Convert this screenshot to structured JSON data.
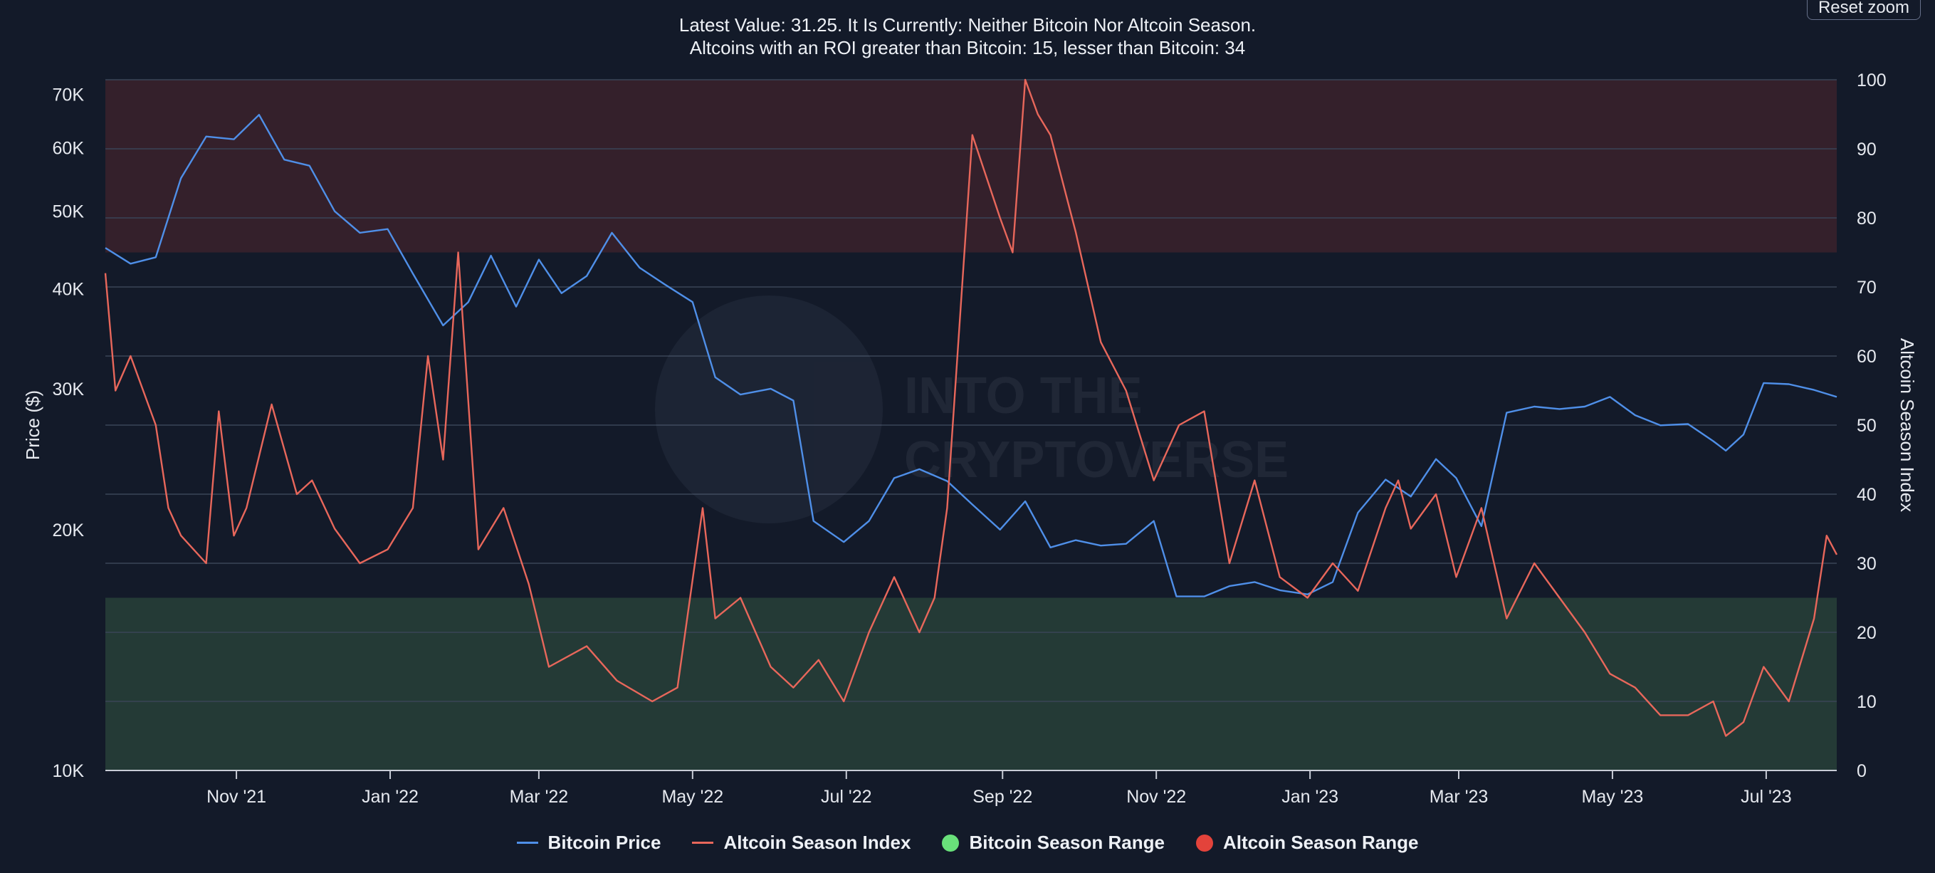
{
  "header": {
    "subtitle_line1": "Latest Value: 31.25. It Is Currently: Neither Bitcoin Nor Altcoin Season.",
    "subtitle_line2": "Altcoins with an ROI greater than Bitcoin: 15, lesser than Bitcoin: 34",
    "reset_zoom_label": "Reset zoom"
  },
  "colors": {
    "background": "#131a29",
    "bitcoin_price": "#4f8fe8",
    "altcoin_index": "#e8675b",
    "bitcoin_season_range": "#69e07a",
    "altcoin_season_range": "#e3433b",
    "bitcoin_band_fill": "#243a36",
    "altcoin_band_fill": "#34202b"
  },
  "legend": [
    {
      "label": "Bitcoin Price",
      "symbol": "line",
      "color": "#4f8fe8"
    },
    {
      "label": "Altcoin Season Index",
      "symbol": "line",
      "color": "#e8675b"
    },
    {
      "label": "Bitcoin Season Range",
      "symbol": "dot",
      "color": "#69e07a"
    },
    {
      "label": "Altcoin Season Range",
      "symbol": "dot",
      "color": "#e3433b"
    }
  ],
  "watermark": {
    "line1": "INTO THE",
    "line2": "CRYPTOVERSE"
  },
  "chart_data": {
    "type": "line",
    "title": "",
    "subtitle": "Latest Value: 31.25. It Is Currently: Neither Bitcoin Nor Altcoin Season. Altcoins with an ROI greater than Bitcoin: 15, lesser than Bitcoin: 34",
    "x_range": [
      "2021-09-10",
      "2023-07-29"
    ],
    "x_tick_labels": [
      {
        "date": "2021-11-01",
        "label": "Nov '21"
      },
      {
        "date": "2022-01-01",
        "label": "Jan '22"
      },
      {
        "date": "2022-03-01",
        "label": "Mar '22"
      },
      {
        "date": "2022-05-01",
        "label": "May '22"
      },
      {
        "date": "2022-07-01",
        "label": "Jul '22"
      },
      {
        "date": "2022-09-01",
        "label": "Sep '22"
      },
      {
        "date": "2022-11-01",
        "label": "Nov '22"
      },
      {
        "date": "2023-01-01",
        "label": "Jan '23"
      },
      {
        "date": "2023-03-01",
        "label": "Mar '23"
      },
      {
        "date": "2023-05-01",
        "label": "May '23"
      },
      {
        "date": "2023-07-01",
        "label": "Jul '23"
      }
    ],
    "y_left": {
      "label": "Price ($)",
      "scale": "log",
      "range": [
        10000,
        73000
      ],
      "ticks": [
        10000,
        20000,
        30000,
        40000,
        50000,
        60000,
        70000
      ],
      "tick_labels": [
        "10K",
        "20K",
        "30K",
        "40K",
        "50K",
        "60K",
        "70K"
      ]
    },
    "y_right": {
      "label": "Altcoin Season Index",
      "scale": "linear",
      "range": [
        0,
        100
      ],
      "ticks": [
        0,
        10,
        20,
        30,
        40,
        50,
        60,
        70,
        80,
        90,
        100
      ]
    },
    "bands": [
      {
        "name": "Bitcoin Season Range",
        "axis": "right",
        "from": 0,
        "to": 25
      },
      {
        "name": "Altcoin Season Range",
        "axis": "right",
        "from": 75,
        "to": 100
      }
    ],
    "grid": true,
    "legend_position": "bottom",
    "series": [
      {
        "name": "Bitcoin Price",
        "axis": "left",
        "x": [
          "2021-09-10",
          "2021-09-20",
          "2021-09-30",
          "2021-10-10",
          "2021-10-20",
          "2021-10-31",
          "2021-11-10",
          "2021-11-20",
          "2021-11-30",
          "2021-12-10",
          "2021-12-20",
          "2021-12-31",
          "2022-01-10",
          "2022-01-22",
          "2022-02-01",
          "2022-02-10",
          "2022-02-20",
          "2022-03-01",
          "2022-03-10",
          "2022-03-20",
          "2022-03-30",
          "2022-04-10",
          "2022-04-20",
          "2022-05-01",
          "2022-05-10",
          "2022-05-20",
          "2022-06-01",
          "2022-06-10",
          "2022-06-18",
          "2022-06-30",
          "2022-07-10",
          "2022-07-20",
          "2022-07-30",
          "2022-08-10",
          "2022-08-20",
          "2022-08-31",
          "2022-09-10",
          "2022-09-20",
          "2022-09-30",
          "2022-10-10",
          "2022-10-20",
          "2022-10-31",
          "2022-11-09",
          "2022-11-20",
          "2022-11-30",
          "2022-12-10",
          "2022-12-20",
          "2022-12-31",
          "2023-01-10",
          "2023-01-20",
          "2023-01-31",
          "2023-02-10",
          "2023-02-20",
          "2023-02-28",
          "2023-03-10",
          "2023-03-20",
          "2023-03-31",
          "2023-04-10",
          "2023-04-20",
          "2023-04-30",
          "2023-05-10",
          "2023-05-20",
          "2023-05-31",
          "2023-06-10",
          "2023-06-15",
          "2023-06-22",
          "2023-06-30",
          "2023-07-10",
          "2023-07-20",
          "2023-07-29"
        ],
        "y": [
          45000,
          43000,
          43800,
          55000,
          62000,
          61500,
          66000,
          58000,
          57000,
          50000,
          47000,
          47500,
          41800,
          36000,
          38500,
          44000,
          38000,
          43500,
          39500,
          41500,
          47000,
          42500,
          40500,
          38500,
          31000,
          29500,
          30000,
          29000,
          20500,
          19300,
          20500,
          23200,
          23800,
          23000,
          21500,
          20000,
          21700,
          19000,
          19400,
          19100,
          19200,
          20500,
          16500,
          16500,
          17000,
          17200,
          16800,
          16600,
          17200,
          21000,
          23100,
          22000,
          24500,
          23200,
          20200,
          28000,
          28500,
          28300,
          28500,
          29300,
          27800,
          27000,
          27100,
          25800,
          25100,
          26300,
          30500,
          30400,
          29900,
          29300
        ]
      },
      {
        "name": "Altcoin Season Index",
        "axis": "right",
        "x": [
          "2021-09-10",
          "2021-09-14",
          "2021-09-20",
          "2021-09-30",
          "2021-10-05",
          "2021-10-10",
          "2021-10-20",
          "2021-10-25",
          "2021-10-31",
          "2021-11-05",
          "2021-11-15",
          "2021-11-25",
          "2021-12-01",
          "2021-12-10",
          "2021-12-20",
          "2021-12-31",
          "2022-01-10",
          "2022-01-16",
          "2022-01-22",
          "2022-01-28",
          "2022-02-05",
          "2022-02-15",
          "2022-02-25",
          "2022-03-05",
          "2022-03-20",
          "2022-04-01",
          "2022-04-15",
          "2022-04-25",
          "2022-05-05",
          "2022-05-10",
          "2022-05-20",
          "2022-06-01",
          "2022-06-10",
          "2022-06-20",
          "2022-06-30",
          "2022-07-10",
          "2022-07-20",
          "2022-07-30",
          "2022-08-05",
          "2022-08-10",
          "2022-08-20",
          "2022-08-31",
          "2022-09-05",
          "2022-09-10",
          "2022-09-15",
          "2022-09-20",
          "2022-09-30",
          "2022-10-05",
          "2022-10-10",
          "2022-10-20",
          "2022-10-31",
          "2022-11-10",
          "2022-11-20",
          "2022-11-30",
          "2022-12-10",
          "2022-12-20",
          "2022-12-31",
          "2023-01-10",
          "2023-01-20",
          "2023-01-31",
          "2023-02-05",
          "2023-02-10",
          "2023-02-20",
          "2023-02-28",
          "2023-03-10",
          "2023-03-20",
          "2023-03-31",
          "2023-04-10",
          "2023-04-20",
          "2023-04-30",
          "2023-05-10",
          "2023-05-20",
          "2023-05-31",
          "2023-06-10",
          "2023-06-15",
          "2023-06-22",
          "2023-06-30",
          "2023-07-10",
          "2023-07-20",
          "2023-07-25",
          "2023-07-29"
        ],
        "y": [
          72,
          55,
          60,
          50,
          38,
          34,
          30,
          52,
          34,
          38,
          53,
          40,
          42,
          35,
          30,
          32,
          38,
          60,
          45,
          75,
          32,
          38,
          27,
          15,
          18,
          13,
          10,
          12,
          38,
          22,
          25,
          15,
          12,
          16,
          10,
          20,
          28,
          20,
          25,
          38,
          92,
          80,
          75,
          100,
          95,
          92,
          78,
          70,
          62,
          55,
          42,
          50,
          52,
          30,
          42,
          28,
          25,
          30,
          26,
          38,
          42,
          35,
          40,
          28,
          38,
          22,
          30,
          25,
          20,
          14,
          12,
          8,
          8,
          10,
          5,
          7,
          15,
          10,
          22,
          34,
          31.25
        ]
      }
    ]
  }
}
